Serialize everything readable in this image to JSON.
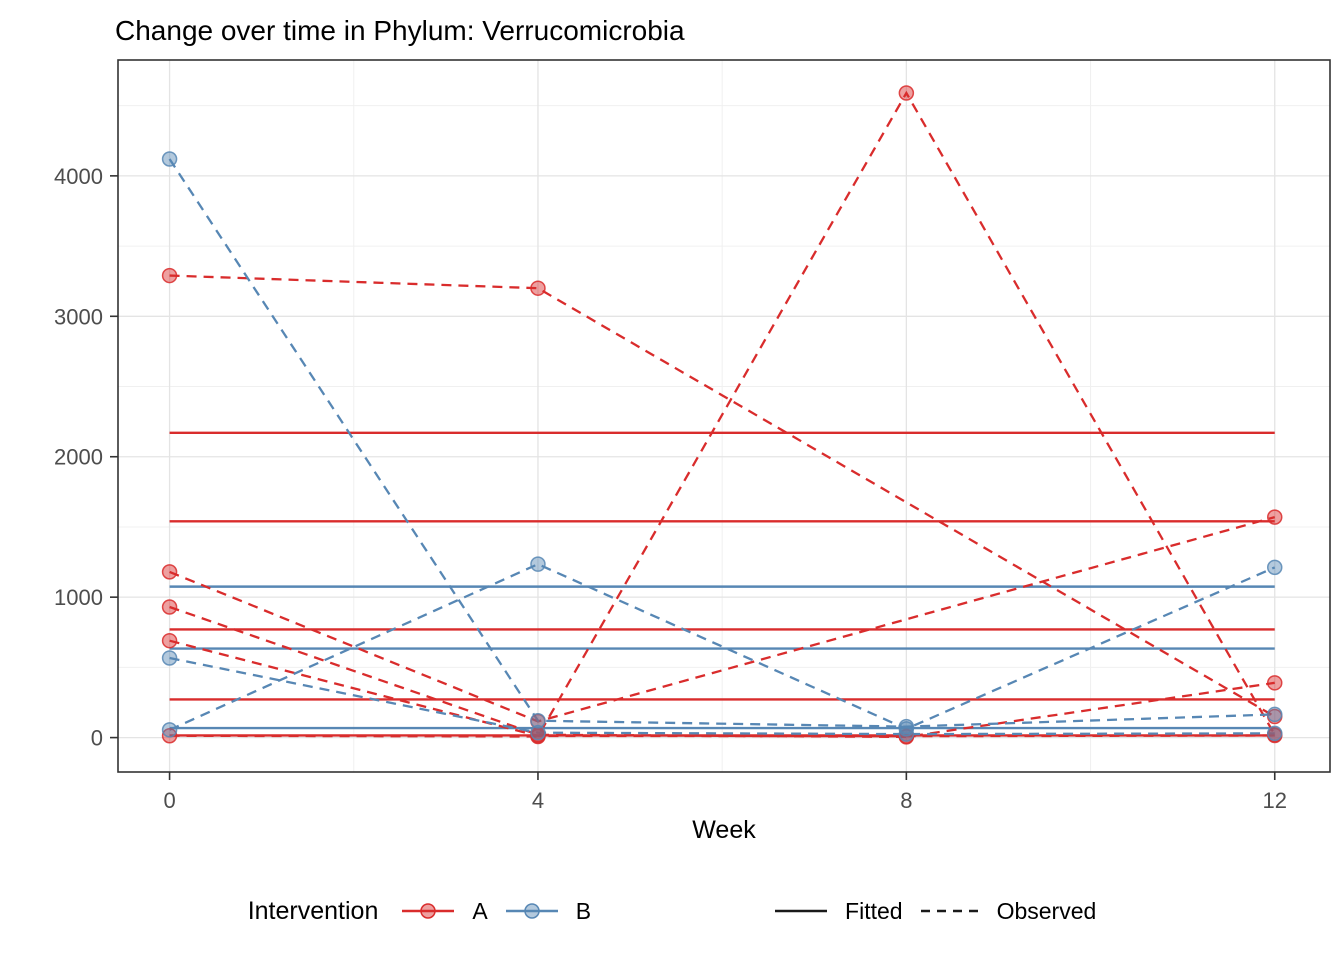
{
  "chart_data": {
    "type": "line",
    "title": "Change over time in Phylum: Verrucomicrobia",
    "xlabel": "Week",
    "ylabel": "",
    "x_ticks": [
      0,
      4,
      8,
      12
    ],
    "y_ticks": [
      0,
      1000,
      2000,
      3000,
      4000
    ],
    "x_minor": [
      2,
      6,
      10
    ],
    "y_minor": [
      500,
      1500,
      2500,
      3500,
      4500
    ],
    "xlim": [
      -0.56,
      12.6
    ],
    "ylim": [
      -245,
      4825
    ],
    "grid": "major and minor, light gray, white panel, dark panel border",
    "legend_position": "bottom",
    "groups": {
      "A": "#d92c2c",
      "B": "#5787b4"
    },
    "fitted": [
      {
        "group": "A",
        "value": 2170
      },
      {
        "group": "A",
        "value": 1540
      },
      {
        "group": "A",
        "value": 770
      },
      {
        "group": "A",
        "value": 272
      },
      {
        "group": "A",
        "value": 15
      },
      {
        "group": "B",
        "value": 1075
      },
      {
        "group": "B",
        "value": 634
      },
      {
        "group": "B",
        "value": 68
      }
    ],
    "observed": [
      {
        "group": "A",
        "points": [
          [
            0,
            3290
          ],
          [
            4,
            3200
          ],
          [
            12,
            150
          ]
        ]
      },
      {
        "group": "A",
        "points": [
          [
            0,
            13
          ],
          [
            4,
            8
          ],
          [
            8,
            4590
          ],
          [
            12,
            20
          ]
        ]
      },
      {
        "group": "A",
        "points": [
          [
            0,
            1180
          ],
          [
            4,
            115
          ],
          [
            12,
            1570
          ]
        ]
      },
      {
        "group": "A",
        "points": [
          [
            0,
            930
          ],
          [
            4,
            20
          ],
          [
            8,
            5
          ],
          [
            12,
            390
          ]
        ]
      },
      {
        "group": "A",
        "points": [
          [
            0,
            690
          ],
          [
            4,
            12
          ],
          [
            8,
            10
          ],
          [
            12,
            15
          ]
        ]
      },
      {
        "group": "B",
        "points": [
          [
            0,
            4120
          ],
          [
            4,
            120
          ],
          [
            8,
            78
          ],
          [
            12,
            165
          ]
        ]
      },
      {
        "group": "B",
        "points": [
          [
            0,
            55
          ],
          [
            4,
            1235
          ],
          [
            8,
            62
          ],
          [
            12,
            1212
          ]
        ]
      },
      {
        "group": "B",
        "points": [
          [
            0,
            567
          ],
          [
            4,
            35
          ],
          [
            8,
            25
          ],
          [
            12,
            30
          ]
        ]
      }
    ],
    "legend": {
      "title": "Intervention",
      "groups": [
        {
          "label": "A"
        },
        {
          "label": "B"
        }
      ],
      "linetypes": [
        {
          "label": "Fitted"
        },
        {
          "label": "Observed"
        }
      ]
    }
  }
}
